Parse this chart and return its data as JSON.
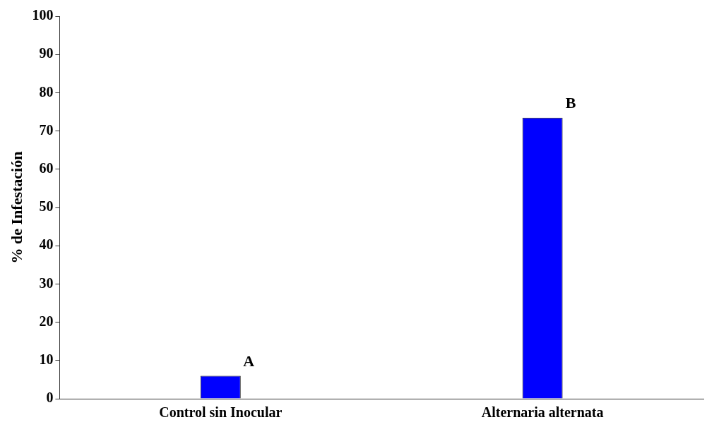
{
  "chart_data": {
    "type": "bar",
    "categories": [
      "Control sin Inocular",
      "Alternaria alternata"
    ],
    "values": [
      6,
      73.5
    ],
    "color": "#0000ff",
    "ylabel": "% de Infestación",
    "ylim": [
      0,
      100
    ],
    "yticks": [
      0,
      10,
      20,
      30,
      40,
      50,
      60,
      70,
      80,
      90,
      100
    ],
    "grid": false,
    "legend": false,
    "annotations": [
      {
        "text": "A",
        "x": "Control sin Inocular",
        "y": 6
      },
      {
        "text": "B",
        "x": "Alternaria alternata",
        "y": 73.5
      }
    ]
  }
}
